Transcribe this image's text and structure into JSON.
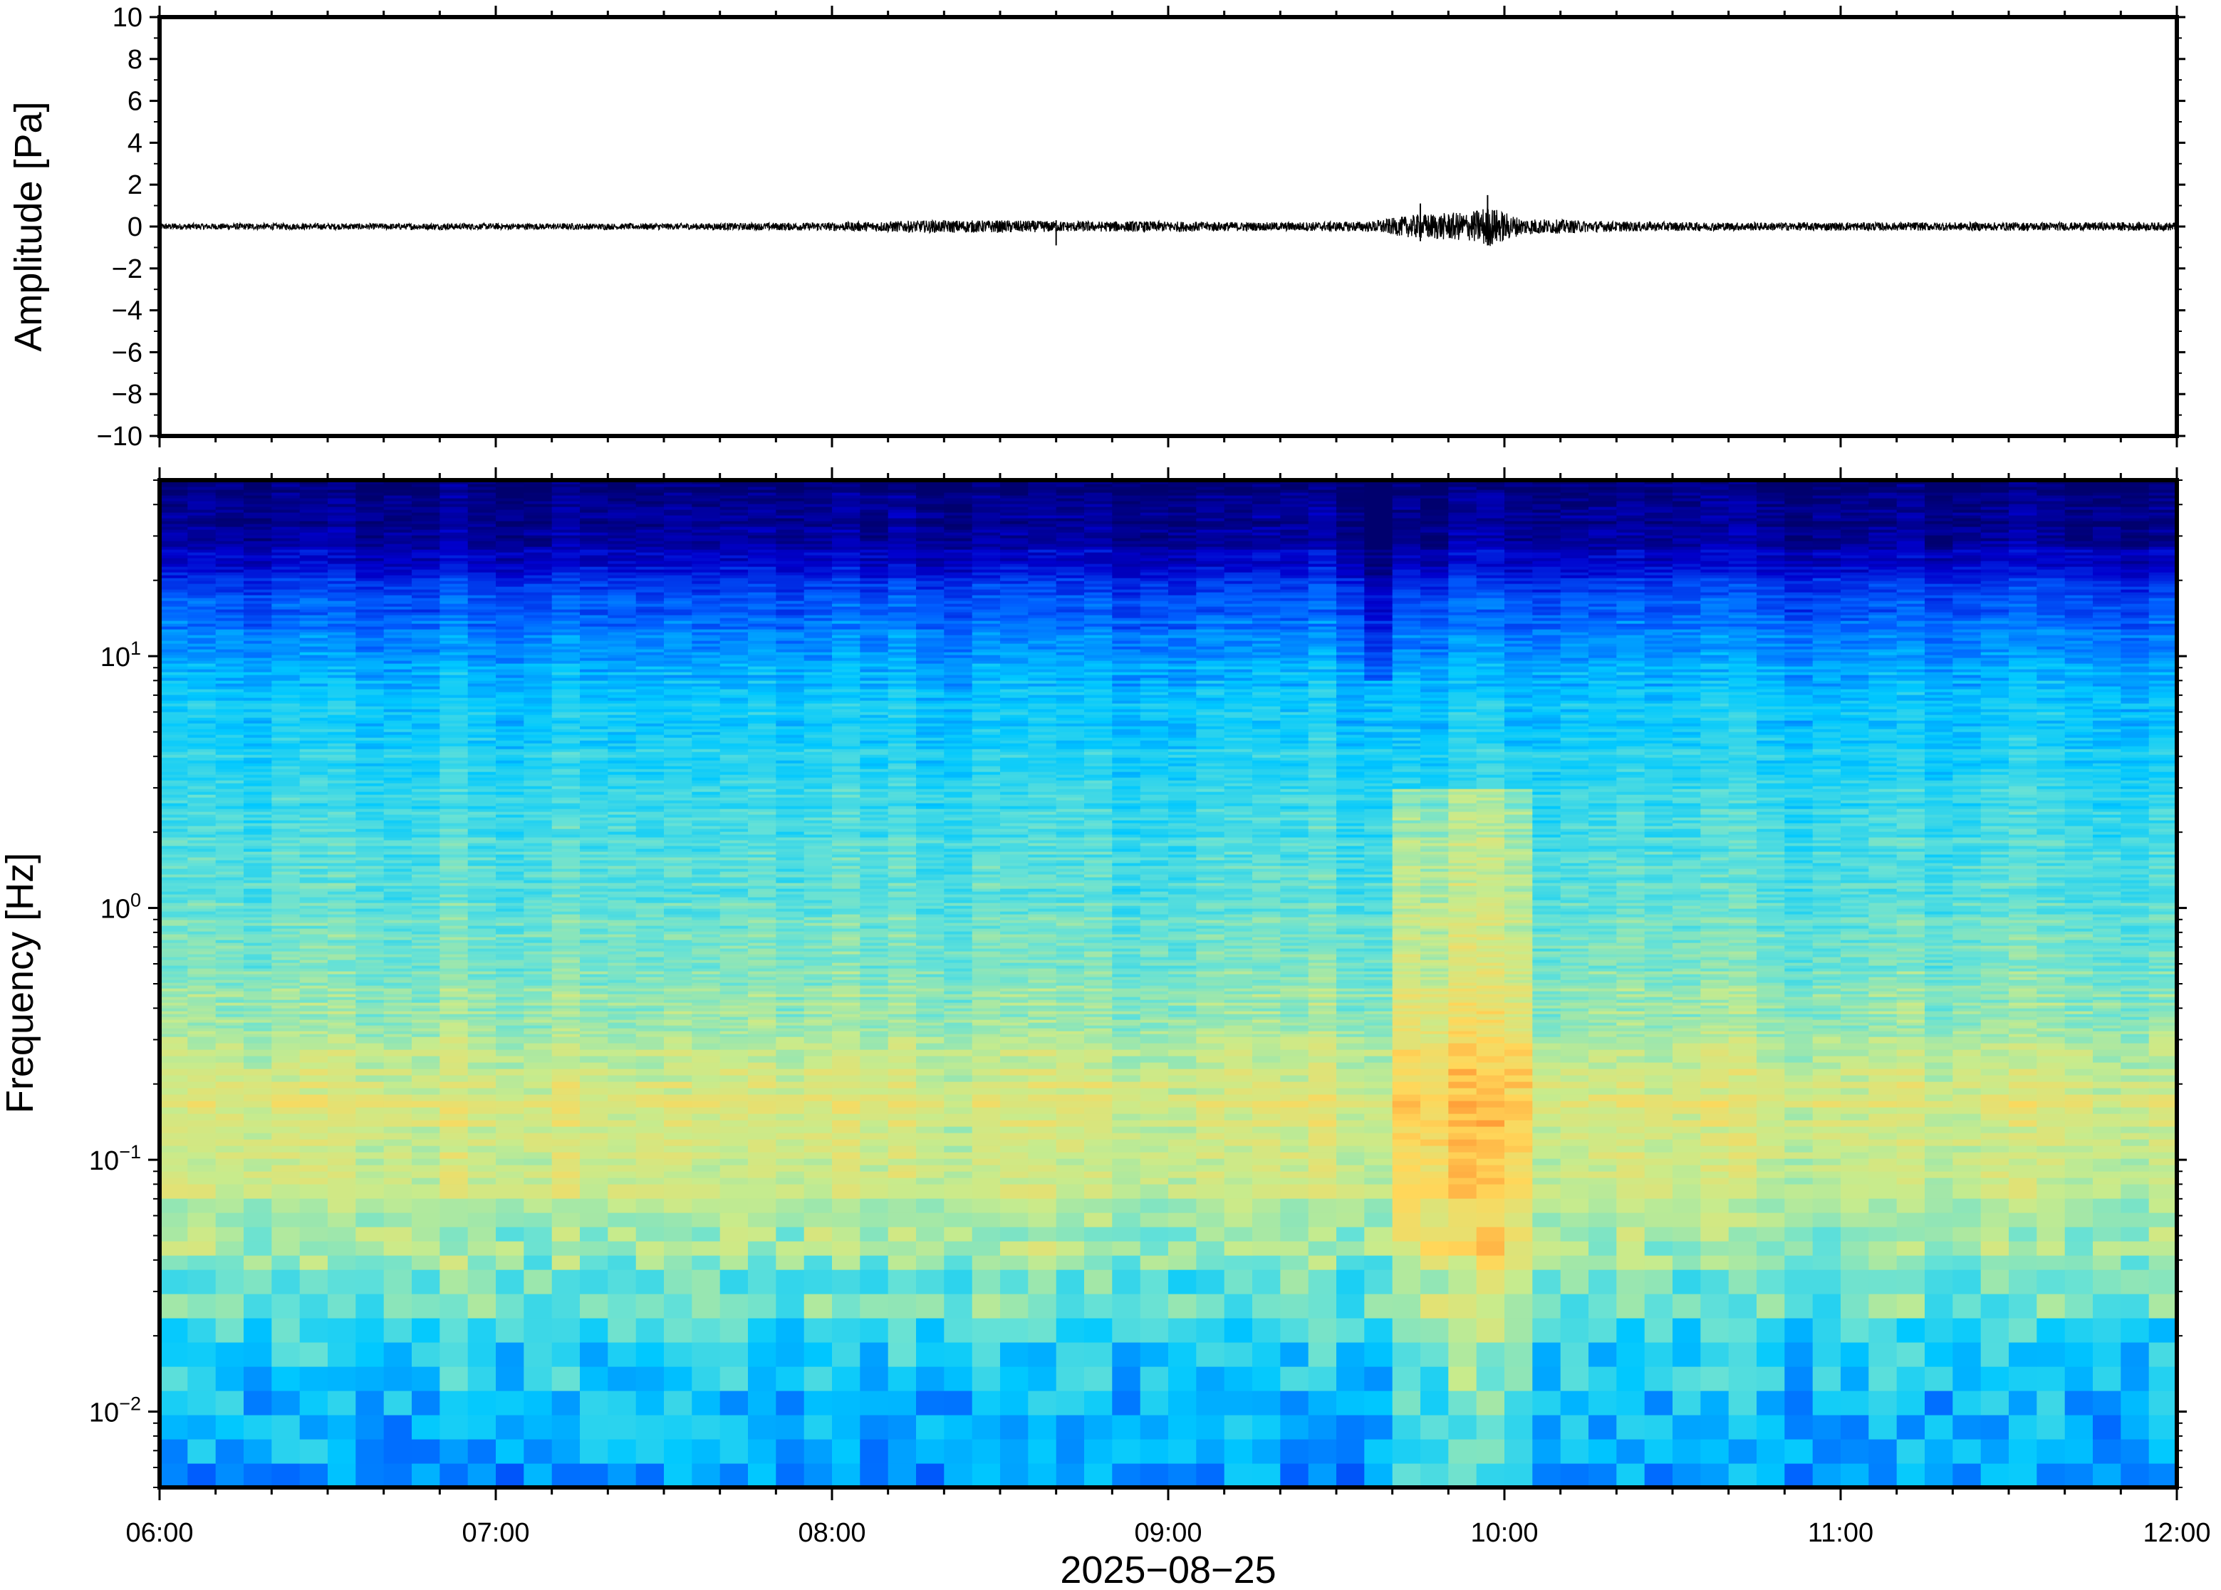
{
  "chart_data": [
    {
      "type": "line",
      "panel": "waveform",
      "ylabel": "Amplitude [Pa]",
      "ylim": [
        -10,
        10
      ],
      "yticks": [
        10,
        8,
        6,
        4,
        2,
        0,
        -2,
        -4,
        -6,
        -8,
        -10
      ],
      "ytick_labels": [
        "10",
        "8",
        "6",
        "4",
        "2",
        "0",
        "−2",
        "−4",
        "−6",
        "−8",
        "−10"
      ],
      "x_range": [
        "06:00",
        "12:00"
      ],
      "series": [
        {
          "envelope_time_hours": [
            6.0,
            6.5,
            7.0,
            7.5,
            8.0,
            8.3,
            8.5,
            8.7,
            9.0,
            9.3,
            9.6,
            9.75,
            9.9,
            9.95,
            10.05,
            10.3,
            10.6,
            11.0,
            11.5,
            12.0
          ],
          "envelope_half_amplitude_pa": [
            0.15,
            0.15,
            0.15,
            0.15,
            0.2,
            0.3,
            0.3,
            0.25,
            0.25,
            0.2,
            0.25,
            0.6,
            0.7,
            1.0,
            0.4,
            0.25,
            0.2,
            0.2,
            0.2,
            0.2
          ],
          "spikes": [
            {
              "time": "09:45",
              "max_pa": 1.1,
              "min_pa": -0.7
            },
            {
              "time": "09:57",
              "max_pa": 1.5,
              "min_pa": -0.9
            },
            {
              "time": "08:40",
              "max_pa": 0.3,
              "min_pa": -0.9
            }
          ],
          "color": "#000000"
        }
      ]
    },
    {
      "type": "heatmap",
      "panel": "spectrogram",
      "ylabel": "Frequency [Hz]",
      "yscale": "log",
      "ylim_hz": [
        0.005,
        50
      ],
      "ytick_decades": [
        -2,
        -1,
        0,
        1
      ],
      "ytick_labels": [
        {
          "base": "10",
          "exp": "−2"
        },
        {
          "base": "10",
          "exp": "−1"
        },
        {
          "base": "10",
          "exp": "0"
        },
        {
          "base": "10",
          "exp": "1"
        }
      ],
      "xlabel": "2025−08−25",
      "x_range": [
        "06:00",
        "12:00"
      ],
      "xtick_labels": [
        "06:00",
        "07:00",
        "08:00",
        "09:00",
        "10:00",
        "11:00",
        "12:00"
      ],
      "colormap": "jet",
      "spectral_profile_freq_hz": [
        0.006,
        0.01,
        0.02,
        0.04,
        0.08,
        0.18,
        0.3,
        1.0,
        3.0,
        7.0,
        12.0,
        20.0,
        30.0,
        50.0
      ],
      "spectral_profile_level": [
        0.33,
        0.35,
        0.45,
        0.55,
        0.62,
        0.66,
        0.58,
        0.5,
        0.44,
        0.38,
        0.3,
        0.18,
        0.06,
        0.0
      ],
      "event": {
        "start": "09:40",
        "end": "10:05",
        "max_freq_hz": 3.0,
        "boost": 0.12
      },
      "quiet_dip": {
        "start": "09:35",
        "end": "09:40",
        "freq_hz_above": 8.0
      }
    }
  ]
}
